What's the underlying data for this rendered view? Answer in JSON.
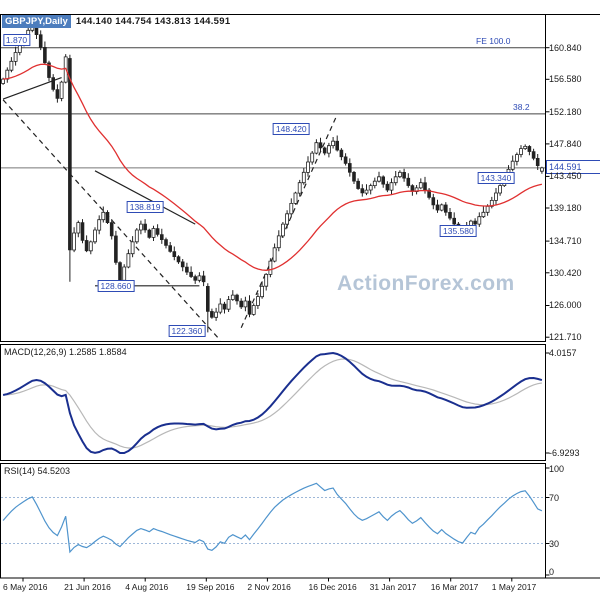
{
  "title": {
    "symbol": "GBPJPY,Daily",
    "ohlc": "144.140 144.754 143.813 144.591",
    "close": "144.591"
  },
  "watermark": "ActionForex.com",
  "panels": {
    "macd_label": "MACD(12,26,9) 1.2585 1.8584",
    "rsi_label": "RSI(14) 54.5203"
  },
  "colors": {
    "annotation": "#2e4bb5",
    "ma_line": "#e03030",
    "macd_line": "#1a2f8f",
    "signal_line": "#b8b8b8",
    "rsi_line": "#4f94cd",
    "watermark": "#b5c5d7",
    "title_bg": "#4d7dbd",
    "candle": "#222222"
  },
  "dates": [
    "6 May 2016",
    "21 Jun 2016",
    "4 Aug 2016",
    "19 Sep 2016",
    "2 Nov 2016",
    "16 Dec 2016",
    "31 Jan 2017",
    "16 Mar 2017",
    "1 May 2017"
  ],
  "chart_data": [
    {
      "type": "candlestick",
      "title": "GBPJPY,Daily",
      "x_labels": [
        "6 May 2016",
        "21 Jun 2016",
        "4 Aug 2016",
        "19 Sep 2016",
        "2 Nov 2016",
        "16 Dec 2016",
        "31 Jan 2017",
        "16 Mar 2017",
        "1 May 2017"
      ],
      "y_range": [
        121.2,
        165.4
      ],
      "y_ticks": [
        {
          "label": "160.840",
          "price": 160.84
        },
        {
          "label": "156.580",
          "price": 156.58
        },
        {
          "label": "152.180",
          "price": 152.18
        },
        {
          "label": "147.840",
          "price": 147.84
        },
        {
          "label": "143.450",
          "price": 143.45
        },
        {
          "label": "139.180",
          "price": 139.18
        },
        {
          "label": "134.710",
          "price": 134.71
        },
        {
          "label": "130.420",
          "price": 130.42
        },
        {
          "label": "126.000",
          "price": 126.0
        },
        {
          "label": "121.710",
          "price": 121.71
        }
      ],
      "closes": [
        156.6,
        157.8,
        159.0,
        160.2,
        161.2,
        162.2,
        163.2,
        163.9,
        162.6,
        160.9,
        158.8,
        156.8,
        155.2,
        154.0,
        156.2,
        159.6,
        133.5,
        135.8,
        137.2,
        134.8,
        133.4,
        134.6,
        136.2,
        137.6,
        138.6,
        137.2,
        135.4,
        131.8,
        129.4,
        131.2,
        133.0,
        134.6,
        136.2,
        137.0,
        136.2,
        135.2,
        136.4,
        135.6,
        134.9,
        134.1,
        133.3,
        132.6,
        131.9,
        131.2,
        130.5,
        129.9,
        129.4,
        130.0,
        129.2,
        125.2,
        124.4,
        125.1,
        126.2,
        125.5,
        126.8,
        127.4,
        126.6,
        125.8,
        126.6,
        124.8,
        126.0,
        127.2,
        128.6,
        130.2,
        132.0,
        133.8,
        135.4,
        137.0,
        138.4,
        139.8,
        141.2,
        142.6,
        144.0,
        145.4,
        146.6,
        148.0,
        147.3,
        146.6,
        147.6,
        148.2,
        147.0,
        146.1,
        145.2,
        144.0,
        142.8,
        141.8,
        141.2,
        141.6,
        142.2,
        142.8,
        143.4,
        142.4,
        141.6,
        142.6,
        143.4,
        144.0,
        143.2,
        142.2,
        141.4,
        141.9,
        142.6,
        141.6,
        140.6,
        139.6,
        138.9,
        139.6,
        138.6,
        137.8,
        137.0,
        136.2,
        135.8,
        136.6,
        137.4,
        137.0,
        138.0,
        138.6,
        139.4,
        140.2,
        141.2,
        142.2,
        143.2,
        144.4,
        145.5,
        146.4,
        147.2,
        147.5,
        146.8,
        145.9,
        144.9,
        144.591
      ],
      "overrides": [
        {
          "i": 7,
          "h": 163.95
        },
        {
          "i": 16,
          "o": 159.4,
          "h": 159.9,
          "l": 129.2,
          "c": 133.5
        },
        {
          "i": 49,
          "o": 128.6,
          "h": 129.0,
          "l": 122.36,
          "c": 125.2
        },
        {
          "i": 110,
          "l": 135.58
        },
        {
          "i": 125,
          "h": 147.77
        },
        {
          "i": 129,
          "o": 144.14,
          "h": 144.754,
          "l": 143.813,
          "c": 144.591
        }
      ],
      "ma": {
        "name": "EMA",
        "period": 34,
        "color": "#e03030"
      },
      "levels": [
        {
          "label": "FE 100.0",
          "price": 160.84
        },
        {
          "label": "38.2",
          "price": 151.9
        }
      ],
      "current_price": 144.591,
      "trendlines": [
        {
          "style": "solid",
          "from": [
            0,
            153.9
          ],
          "to": [
            14,
            156.8
          ]
        },
        {
          "style": "solid",
          "from": [
            22,
            144.2
          ],
          "to": [
            46,
            137.0
          ]
        },
        {
          "style": "solid",
          "from": [
            22,
            128.66
          ],
          "to": [
            47,
            128.66
          ]
        },
        {
          "style": "dashed",
          "from": [
            0,
            153.8
          ],
          "to": [
            52,
            121.3
          ]
        },
        {
          "style": "dashed",
          "from": [
            57,
            123.0
          ],
          "to": [
            80,
            151.8
          ]
        }
      ],
      "annotations": [
        {
          "text": "1.870",
          "bar": 3.2,
          "price": 161.87
        },
        {
          "text": "148.420",
          "bar": 69,
          "price": 149.8
        },
        {
          "text": "143.340",
          "bar": 118,
          "price": 143.2
        },
        {
          "text": "138.819",
          "bar": 34,
          "price": 139.3
        },
        {
          "text": "135.580",
          "bar": 109,
          "price": 136.1
        },
        {
          "text": "128.660",
          "bar": 27,
          "price": 128.66
        },
        {
          "text": "122.360",
          "bar": 44,
          "price": 122.5
        }
      ]
    },
    {
      "type": "line",
      "name": "MACD",
      "label": "MACD(12,26,9)",
      "params": [
        12,
        26,
        9
      ],
      "macd_current": 1.2585,
      "signal_current": 1.8584,
      "axis_labels": [
        "4.0157",
        "-6.9293"
      ],
      "derived_from": "closes"
    },
    {
      "type": "line",
      "name": "RSI",
      "label": "RSI(14)",
      "period": 14,
      "current": 54.5203,
      "axis_ticks": [
        100,
        70,
        30,
        0
      ],
      "bands": [
        70,
        30
      ],
      "range": [
        0,
        100
      ],
      "derived_from": "closes"
    }
  ]
}
